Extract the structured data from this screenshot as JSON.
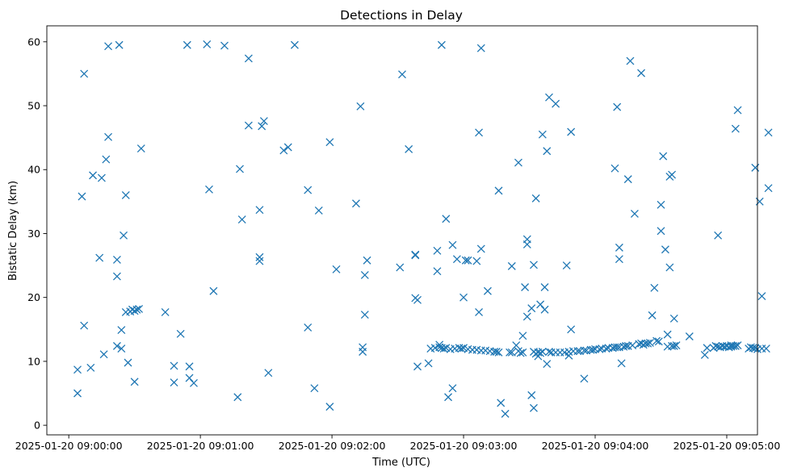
{
  "chart_data": {
    "type": "scatter",
    "title": "Detections in Delay",
    "xlabel": "Time (UTC)",
    "ylabel": "Bistatic Delay (km)",
    "x_unit": "seconds after 2025-01-20 09:00:00",
    "xlim": [
      -10,
      314
    ],
    "ylim": [
      -1.5,
      62.5
    ],
    "x_ticks": [
      {
        "value": 0,
        "label": "2025-01-20 09:00:00"
      },
      {
        "value": 60,
        "label": "2025-01-20 09:01:00"
      },
      {
        "value": 120,
        "label": "2025-01-20 09:02:00"
      },
      {
        "value": 180,
        "label": "2025-01-20 09:03:00"
      },
      {
        "value": 240,
        "label": "2025-01-20 09:04:00"
      },
      {
        "value": 300,
        "label": "2025-01-20 09:05:00"
      }
    ],
    "y_ticks": [
      {
        "value": 0,
        "label": "0"
      },
      {
        "value": 10,
        "label": "10"
      },
      {
        "value": 20,
        "label": "20"
      },
      {
        "value": 30,
        "label": "30"
      },
      {
        "value": 40,
        "label": "40"
      },
      {
        "value": 50,
        "label": "50"
      },
      {
        "value": 60,
        "label": "60"
      }
    ],
    "marker": "x",
    "color": "#1f77b4",
    "grid": false,
    "series": [
      {
        "name": "detections",
        "points": [
          [
            4,
            8.7
          ],
          [
            4,
            5.0
          ],
          [
            6,
            35.8
          ],
          [
            7,
            55.0
          ],
          [
            7,
            15.6
          ],
          [
            10,
            9.0
          ],
          [
            11,
            39.1
          ],
          [
            14,
            26.2
          ],
          [
            15,
            38.7
          ],
          [
            16,
            11.1
          ],
          [
            17,
            41.6
          ],
          [
            18,
            59.3
          ],
          [
            18,
            45.1
          ],
          [
            22,
            25.9
          ],
          [
            22,
            23.3
          ],
          [
            22,
            12.4
          ],
          [
            23,
            59.5
          ],
          [
            24,
            14.9
          ],
          [
            24,
            12.0
          ],
          [
            25,
            29.7
          ],
          [
            26,
            17.7
          ],
          [
            26,
            36.0
          ],
          [
            27,
            9.8
          ],
          [
            28,
            17.8
          ],
          [
            29,
            18.1
          ],
          [
            30,
            6.8
          ],
          [
            30,
            17.9
          ],
          [
            31,
            18.1
          ],
          [
            32,
            18.2
          ],
          [
            33,
            43.3
          ],
          [
            44,
            17.7
          ],
          [
            48,
            9.3
          ],
          [
            48,
            6.7
          ],
          [
            51,
            14.3
          ],
          [
            54,
            59.5
          ],
          [
            55,
            7.4
          ],
          [
            55,
            9.2
          ],
          [
            57,
            6.6
          ],
          [
            63,
            59.6
          ],
          [
            64,
            36.9
          ],
          [
            66,
            21.0
          ],
          [
            71,
            59.4
          ],
          [
            77,
            4.4
          ],
          [
            78,
            40.1
          ],
          [
            79,
            32.2
          ],
          [
            82,
            57.4
          ],
          [
            82,
            46.9
          ],
          [
            87,
            33.7
          ],
          [
            87,
            26.3
          ],
          [
            87,
            25.7
          ],
          [
            88,
            46.8
          ],
          [
            89,
            47.6
          ],
          [
            91,
            8.2
          ],
          [
            98,
            43.0
          ],
          [
            100,
            43.5
          ],
          [
            103,
            59.5
          ],
          [
            109,
            36.8
          ],
          [
            109,
            15.3
          ],
          [
            112,
            5.8
          ],
          [
            114,
            33.6
          ],
          [
            119,
            44.3
          ],
          [
            119,
            2.9
          ],
          [
            122,
            24.4
          ],
          [
            131,
            34.7
          ],
          [
            133,
            49.9
          ],
          [
            134,
            11.5
          ],
          [
            134,
            12.2
          ],
          [
            135,
            23.5
          ],
          [
            135,
            17.3
          ],
          [
            136,
            25.8
          ],
          [
            151,
            24.7
          ],
          [
            152,
            54.9
          ],
          [
            155,
            43.2
          ],
          [
            158,
            26.7
          ],
          [
            158,
            26.6
          ],
          [
            158,
            19.9
          ],
          [
            159,
            9.2
          ],
          [
            159,
            19.6
          ],
          [
            164,
            9.7
          ],
          [
            165,
            12.0
          ],
          [
            167,
            12.1
          ],
          [
            168,
            24.1
          ],
          [
            168,
            27.3
          ],
          [
            169,
            12.6
          ],
          [
            169,
            12.2
          ],
          [
            170,
            59.5
          ],
          [
            170,
            12.1
          ],
          [
            171,
            12.0
          ],
          [
            172,
            32.3
          ],
          [
            172,
            12.1
          ],
          [
            173,
            4.4
          ],
          [
            174,
            11.9
          ],
          [
            175,
            5.8
          ],
          [
            175,
            28.2
          ],
          [
            176,
            12.0
          ],
          [
            177,
            26.0
          ],
          [
            178,
            12.1
          ],
          [
            179,
            12.0
          ],
          [
            180,
            20.0
          ],
          [
            180,
            12.1
          ],
          [
            181,
            25.8
          ],
          [
            182,
            25.8
          ],
          [
            182,
            11.9
          ],
          [
            184,
            11.8
          ],
          [
            186,
            25.7
          ],
          [
            186,
            11.8
          ],
          [
            187,
            17.7
          ],
          [
            187,
            45.8
          ],
          [
            188,
            27.6
          ],
          [
            188,
            11.7
          ],
          [
            188,
            59.0
          ],
          [
            190,
            11.7
          ],
          [
            191,
            21.0
          ],
          [
            192,
            11.6
          ],
          [
            194,
            11.5
          ],
          [
            195,
            11.5
          ],
          [
            196,
            11.4
          ],
          [
            196,
            36.7
          ],
          [
            197,
            3.5
          ],
          [
            199,
            1.8
          ],
          [
            201,
            11.4
          ],
          [
            202,
            11.4
          ],
          [
            202,
            24.9
          ],
          [
            204,
            12.5
          ],
          [
            205,
            11.6
          ],
          [
            205,
            41.1
          ],
          [
            206,
            11.3
          ],
          [
            207,
            11.4
          ],
          [
            207,
            14.0
          ],
          [
            208,
            21.6
          ],
          [
            209,
            28.3
          ],
          [
            209,
            29.1
          ],
          [
            209,
            17.0
          ],
          [
            211,
            18.3
          ],
          [
            211,
            4.7
          ],
          [
            212,
            11.5
          ],
          [
            212,
            25.1
          ],
          [
            212,
            2.7
          ],
          [
            213,
            35.5
          ],
          [
            213,
            11.2
          ],
          [
            214,
            10.8
          ],
          [
            214,
            11.4
          ],
          [
            215,
            18.9
          ],
          [
            215,
            11.3
          ],
          [
            216,
            11.5
          ],
          [
            216,
            45.5
          ],
          [
            217,
            21.6
          ],
          [
            217,
            18.1
          ],
          [
            218,
            9.6
          ],
          [
            218,
            42.9
          ],
          [
            219,
            51.3
          ],
          [
            219,
            11.5
          ],
          [
            220,
            11.4
          ],
          [
            222,
            11.4
          ],
          [
            222,
            50.3
          ],
          [
            224,
            11.4
          ],
          [
            226,
            11.4
          ],
          [
            227,
            25.0
          ],
          [
            228,
            11.5
          ],
          [
            228,
            10.9
          ],
          [
            229,
            15.0
          ],
          [
            229,
            45.9
          ],
          [
            230,
            11.6
          ],
          [
            232,
            11.6
          ],
          [
            233,
            11.6
          ],
          [
            235,
            11.7
          ],
          [
            235,
            7.3
          ],
          [
            236,
            11.7
          ],
          [
            238,
            11.8
          ],
          [
            239,
            11.8
          ],
          [
            240,
            11.9
          ],
          [
            242,
            11.9
          ],
          [
            243,
            12.0
          ],
          [
            245,
            12.0
          ],
          [
            246,
            12.1
          ],
          [
            248,
            12.1
          ],
          [
            249,
            12.2
          ],
          [
            249,
            40.2
          ],
          [
            250,
            49.8
          ],
          [
            250,
            12.2
          ],
          [
            251,
            26.0
          ],
          [
            251,
            27.8
          ],
          [
            251,
            12.2
          ],
          [
            252,
            9.7
          ],
          [
            253,
            12.3
          ],
          [
            254,
            12.4
          ],
          [
            255,
            12.4
          ],
          [
            255,
            38.5
          ],
          [
            256,
            57.0
          ],
          [
            257,
            12.5
          ],
          [
            258,
            33.1
          ],
          [
            260,
            12.7
          ],
          [
            261,
            55.1
          ],
          [
            261,
            12.8
          ],
          [
            262,
            12.6
          ],
          [
            263,
            12.8
          ],
          [
            264,
            12.8
          ],
          [
            265,
            12.9
          ],
          [
            266,
            17.2
          ],
          [
            267,
            21.5
          ],
          [
            268,
            13.2
          ],
          [
            269,
            13.1
          ],
          [
            270,
            30.4
          ],
          [
            270,
            34.5
          ],
          [
            271,
            42.1
          ],
          [
            272,
            27.5
          ],
          [
            273,
            12.3
          ],
          [
            273,
            14.2
          ],
          [
            274,
            24.7
          ],
          [
            274,
            38.9
          ],
          [
            275,
            39.2
          ],
          [
            275,
            12.4
          ],
          [
            276,
            12.4
          ],
          [
            276,
            16.7
          ],
          [
            277,
            12.5
          ],
          [
            283,
            13.9
          ],
          [
            290,
            11.0
          ],
          [
            291,
            12.1
          ],
          [
            294,
            12.1
          ],
          [
            295,
            12.4
          ],
          [
            296,
            12.3
          ],
          [
            296,
            29.7
          ],
          [
            297,
            12.2
          ],
          [
            298,
            12.4
          ],
          [
            299,
            12.3
          ],
          [
            300,
            12.4
          ],
          [
            301,
            12.2
          ],
          [
            302,
            12.3
          ],
          [
            302,
            12.5
          ],
          [
            303,
            12.4
          ],
          [
            304,
            12.4
          ],
          [
            304,
            46.4
          ],
          [
            305,
            12.5
          ],
          [
            305,
            49.3
          ],
          [
            310,
            12.0
          ],
          [
            311,
            12.2
          ],
          [
            312,
            12.1
          ],
          [
            313,
            40.3
          ],
          [
            313,
            12.1
          ],
          [
            314,
            11.9
          ],
          [
            315,
            35.0
          ],
          [
            316,
            20.2
          ],
          [
            316,
            12.0
          ],
          [
            318,
            12.0
          ],
          [
            319,
            45.8
          ],
          [
            319,
            37.1
          ]
        ]
      }
    ]
  }
}
